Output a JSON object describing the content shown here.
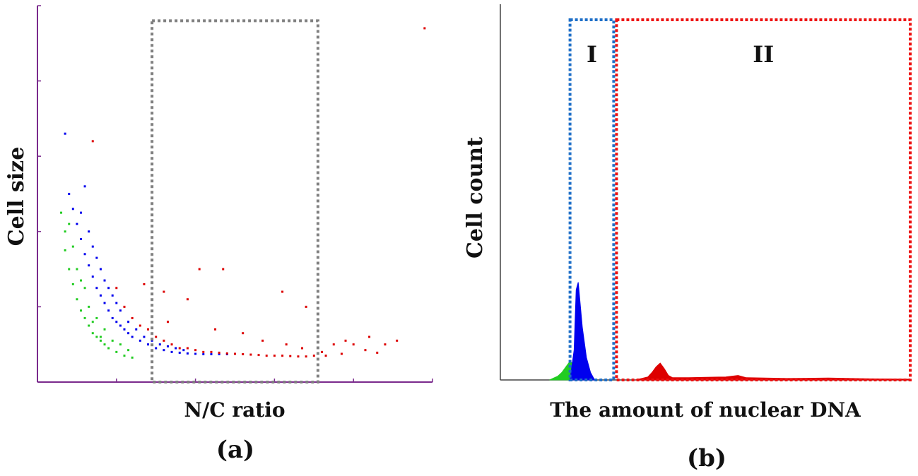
{
  "colors": {
    "axis_a": "#7a2a8c",
    "axis_b": "#444444",
    "green": "#22cc22",
    "blue": "#0000ee",
    "red": "#dd0000",
    "gate_gray": "#808080",
    "gate_blue": "#1e6fc8",
    "gate_red": "#ee1111"
  },
  "chart_data": [
    {
      "type": "scatter",
      "panel_label": "(a)",
      "xlabel": "N/C ratio",
      "ylabel": "Cell size",
      "x_ticks": 5,
      "y_ticks": 5,
      "xlim": [
        0,
        1
      ],
      "ylim": [
        0,
        1
      ],
      "gate": {
        "x0": 0.29,
        "x1": 0.71,
        "y0": 0.0,
        "y1": 0.96,
        "style": "dotted",
        "color": "gray"
      },
      "series": [
        {
          "color": "green",
          "points": [
            [
              0.06,
              0.45
            ],
            [
              0.07,
              0.4
            ],
            [
              0.07,
              0.35
            ],
            [
              0.08,
              0.3
            ],
            [
              0.09,
              0.26
            ],
            [
              0.1,
              0.22
            ],
            [
              0.11,
              0.19
            ],
            [
              0.12,
              0.17
            ],
            [
              0.13,
              0.15
            ],
            [
              0.14,
              0.13
            ],
            [
              0.15,
              0.12
            ],
            [
              0.16,
              0.11
            ],
            [
              0.17,
              0.1
            ],
            [
              0.18,
              0.09
            ],
            [
              0.2,
              0.08
            ],
            [
              0.22,
              0.07
            ],
            [
              0.24,
              0.065
            ],
            [
              0.1,
              0.3
            ],
            [
              0.12,
              0.25
            ],
            [
              0.09,
              0.36
            ],
            [
              0.13,
              0.2
            ],
            [
              0.15,
              0.17
            ],
            [
              0.17,
              0.14
            ],
            [
              0.19,
              0.11
            ],
            [
              0.21,
              0.1
            ],
            [
              0.08,
              0.42
            ],
            [
              0.11,
              0.27
            ],
            [
              0.14,
              0.16
            ],
            [
              0.16,
              0.12
            ],
            [
              0.23,
              0.085
            ]
          ]
        },
        {
          "color": "blue",
          "points": [
            [
              0.07,
              0.66
            ],
            [
              0.08,
              0.5
            ],
            [
              0.09,
              0.46
            ],
            [
              0.1,
              0.42
            ],
            [
              0.11,
              0.38
            ],
            [
              0.12,
              0.34
            ],
            [
              0.13,
              0.31
            ],
            [
              0.14,
              0.28
            ],
            [
              0.15,
              0.25
            ],
            [
              0.16,
              0.23
            ],
            [
              0.17,
              0.21
            ],
            [
              0.18,
              0.19
            ],
            [
              0.19,
              0.17
            ],
            [
              0.2,
              0.16
            ],
            [
              0.21,
              0.15
            ],
            [
              0.22,
              0.14
            ],
            [
              0.23,
              0.13
            ],
            [
              0.24,
              0.12
            ],
            [
              0.26,
              0.11
            ],
            [
              0.28,
              0.1
            ],
            [
              0.3,
              0.09
            ],
            [
              0.32,
              0.085
            ],
            [
              0.34,
              0.08
            ],
            [
              0.36,
              0.078
            ],
            [
              0.38,
              0.076
            ],
            [
              0.4,
              0.075
            ],
            [
              0.42,
              0.074
            ],
            [
              0.44,
              0.074
            ],
            [
              0.46,
              0.074
            ],
            [
              0.48,
              0.074
            ],
            [
              0.5,
              0.075
            ],
            [
              0.12,
              0.52
            ],
            [
              0.11,
              0.45
            ],
            [
              0.13,
              0.4
            ],
            [
              0.15,
              0.33
            ],
            [
              0.17,
              0.27
            ],
            [
              0.19,
              0.23
            ],
            [
              0.21,
              0.19
            ],
            [
              0.23,
              0.16
            ],
            [
              0.25,
              0.14
            ],
            [
              0.27,
              0.12
            ],
            [
              0.29,
              0.11
            ],
            [
              0.31,
              0.1
            ],
            [
              0.33,
              0.095
            ],
            [
              0.35,
              0.09
            ],
            [
              0.37,
              0.085
            ],
            [
              0.14,
              0.36
            ],
            [
              0.16,
              0.3
            ],
            [
              0.18,
              0.25
            ],
            [
              0.2,
              0.21
            ]
          ]
        },
        {
          "color": "red",
          "points": [
            [
              0.14,
              0.64
            ],
            [
              0.2,
              0.25
            ],
            [
              0.22,
              0.2
            ],
            [
              0.24,
              0.17
            ],
            [
              0.26,
              0.15
            ],
            [
              0.28,
              0.14
            ],
            [
              0.3,
              0.12
            ],
            [
              0.32,
              0.11
            ],
            [
              0.34,
              0.1
            ],
            [
              0.36,
              0.09
            ],
            [
              0.38,
              0.09
            ],
            [
              0.4,
              0.085
            ],
            [
              0.42,
              0.08
            ],
            [
              0.44,
              0.08
            ],
            [
              0.46,
              0.078
            ],
            [
              0.48,
              0.076
            ],
            [
              0.5,
              0.075
            ],
            [
              0.52,
              0.074
            ],
            [
              0.54,
              0.073
            ],
            [
              0.56,
              0.072
            ],
            [
              0.58,
              0.07
            ],
            [
              0.6,
              0.07
            ],
            [
              0.62,
              0.07
            ],
            [
              0.64,
              0.069
            ],
            [
              0.66,
              0.068
            ],
            [
              0.68,
              0.068
            ],
            [
              0.7,
              0.07
            ],
            [
              0.72,
              0.08
            ],
            [
              0.75,
              0.1
            ],
            [
              0.78,
              0.11
            ],
            [
              0.8,
              0.1
            ],
            [
              0.84,
              0.12
            ],
            [
              0.88,
              0.1
            ],
            [
              0.91,
              0.11
            ],
            [
              0.27,
              0.26
            ],
            [
              0.32,
              0.24
            ],
            [
              0.38,
              0.22
            ],
            [
              0.41,
              0.3
            ],
            [
              0.47,
              0.3
            ],
            [
              0.62,
              0.24
            ],
            [
              0.68,
              0.2
            ],
            [
              0.98,
              0.94
            ],
            [
              0.33,
              0.16
            ],
            [
              0.45,
              0.14
            ],
            [
              0.52,
              0.13
            ],
            [
              0.57,
              0.11
            ],
            [
              0.63,
              0.1
            ],
            [
              0.67,
              0.09
            ],
            [
              0.73,
              0.07
            ],
            [
              0.77,
              0.075
            ],
            [
              0.83,
              0.085
            ],
            [
              0.86,
              0.078
            ]
          ]
        }
      ]
    },
    {
      "type": "area",
      "panel_label": "(b)",
      "xlabel": "The amount of nuclear DNA",
      "ylabel": "Cell count",
      "xlim": [
        0,
        1
      ],
      "ylim": [
        0,
        1
      ],
      "gates": [
        {
          "label": "I",
          "x0": 0.17,
          "x1": 0.28,
          "color": "blue",
          "style": "dotted"
        },
        {
          "label": "II",
          "x0": 0.28,
          "x1": 1.0,
          "color": "red",
          "style": "dotted"
        }
      ],
      "series": [
        {
          "color": "green",
          "x": [
            0.12,
            0.13,
            0.14,
            0.15,
            0.16,
            0.17,
            0.18,
            0.19
          ],
          "y": [
            0.0,
            0.005,
            0.01,
            0.02,
            0.035,
            0.05,
            0.04,
            0.0
          ]
        },
        {
          "color": "blue",
          "x": [
            0.17,
            0.18,
            0.185,
            0.19,
            0.195,
            0.2,
            0.21,
            0.22,
            0.23
          ],
          "y": [
            0.0,
            0.08,
            0.24,
            0.26,
            0.2,
            0.14,
            0.06,
            0.02,
            0.0
          ]
        },
        {
          "color": "red",
          "x": [
            0.33,
            0.36,
            0.37,
            0.38,
            0.39,
            0.4,
            0.41,
            0.42,
            0.46,
            0.55,
            0.58,
            0.6,
            0.7,
            0.8,
            0.9,
            1.0
          ],
          "y": [
            0.0,
            0.008,
            0.02,
            0.035,
            0.045,
            0.03,
            0.012,
            0.006,
            0.006,
            0.008,
            0.012,
            0.006,
            0.004,
            0.005,
            0.003,
            0.002
          ]
        }
      ]
    }
  ]
}
